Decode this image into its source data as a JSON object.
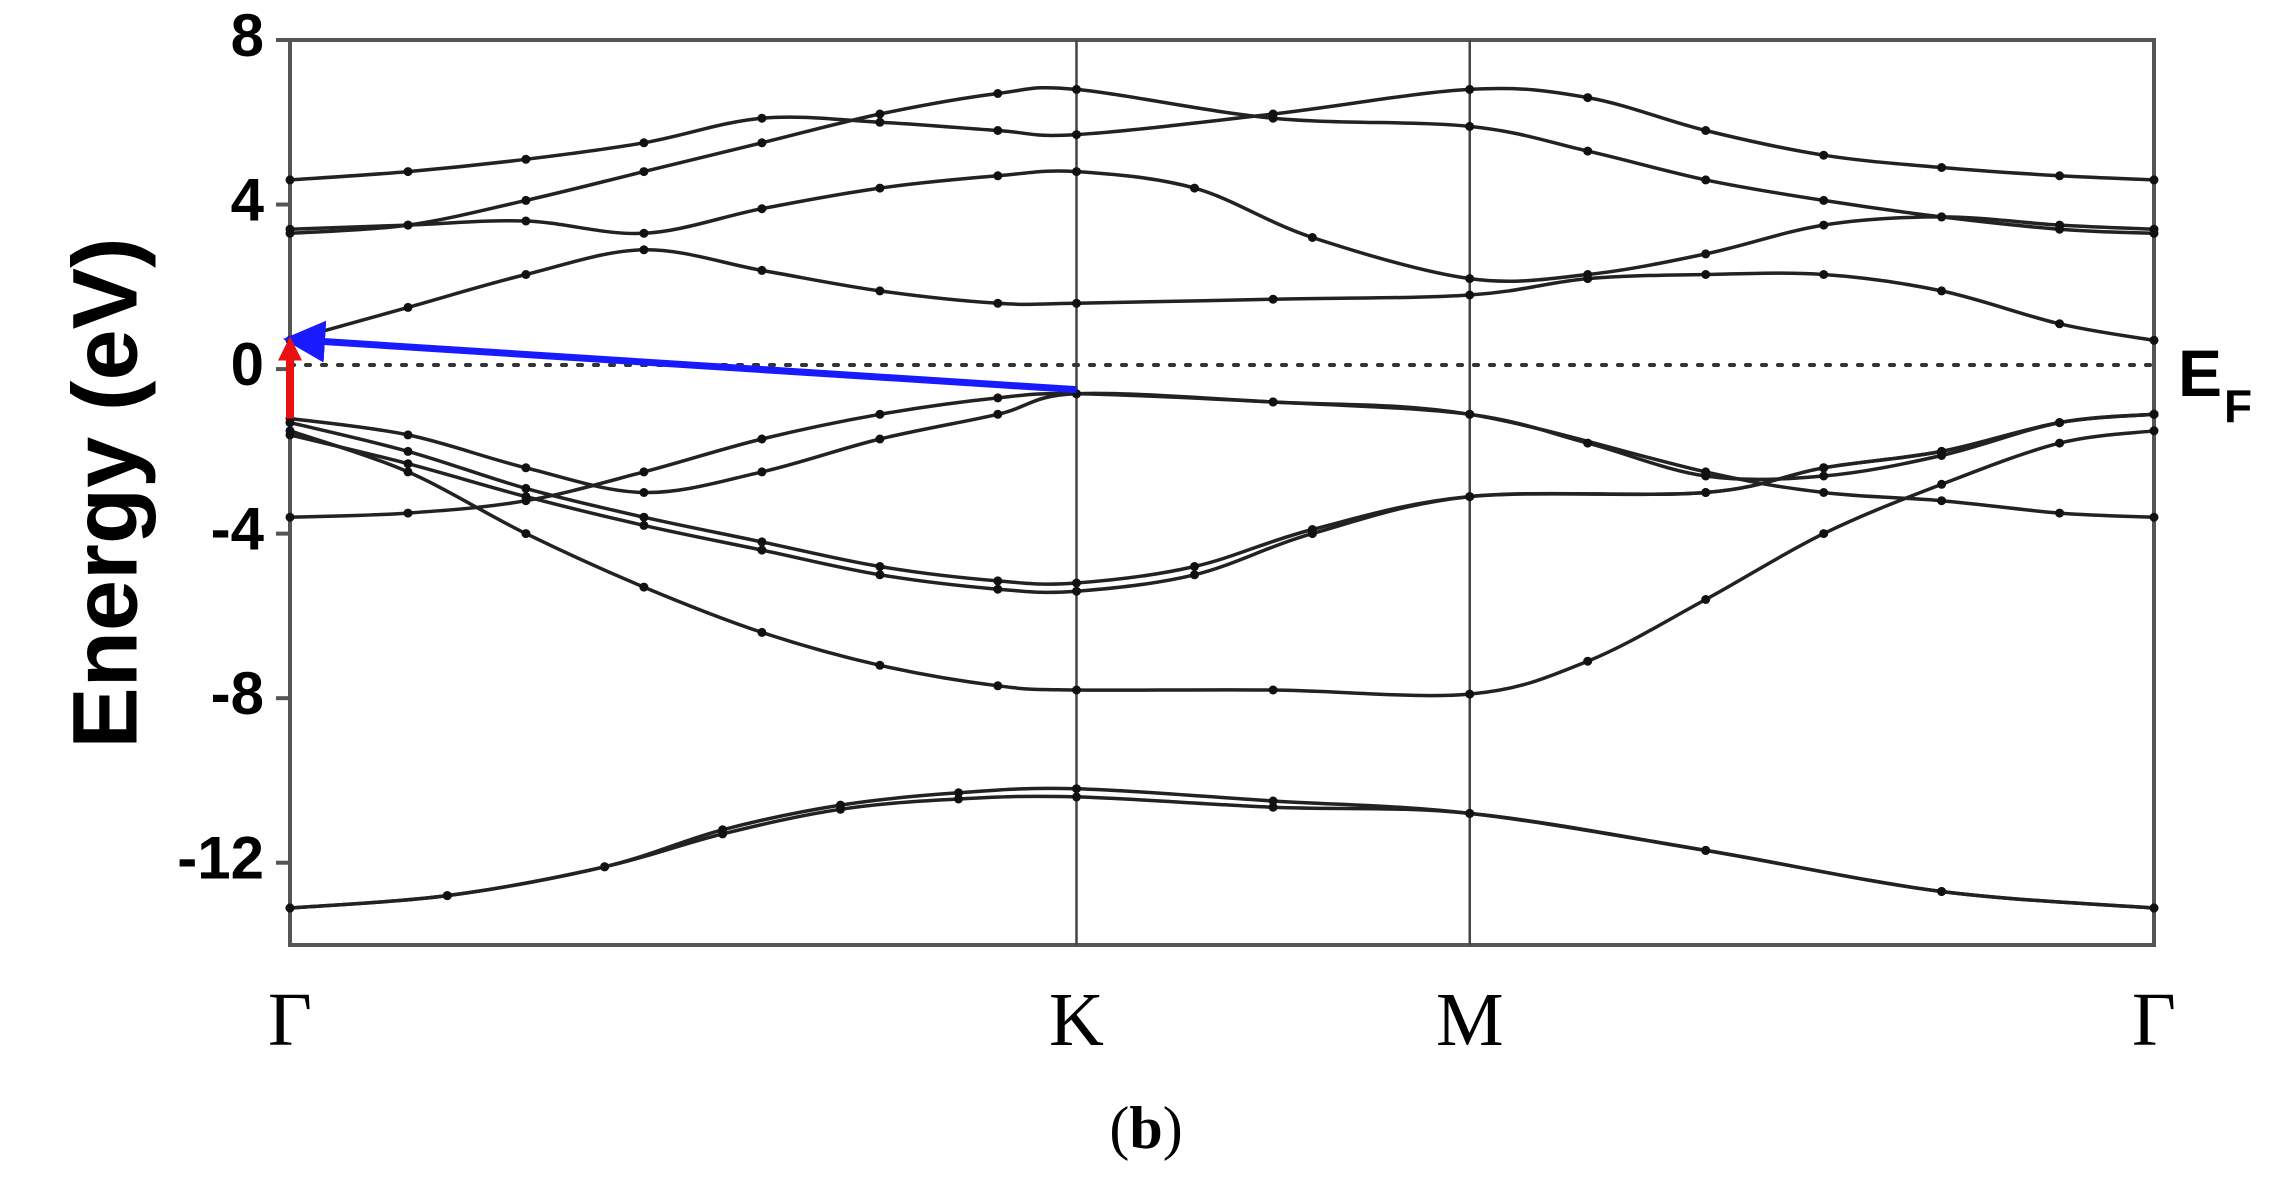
{
  "chart_data": {
    "type": "line",
    "title": "",
    "caption": {
      "open": "(",
      "letter": "b",
      "close": ")"
    },
    "ylabel": "Energy (eV)",
    "xlabel": "",
    "ylim": [
      -14,
      8
    ],
    "yticks": [
      8,
      4,
      0,
      -4,
      -8,
      -12
    ],
    "ytick_labels": [
      "8",
      "4",
      "0",
      "-4",
      "-8",
      "-12"
    ],
    "x_range": [
      0,
      2.37
    ],
    "kpoints": [
      {
        "label": "Γ",
        "x": 0.0
      },
      {
        "label": "K",
        "x": 1.0
      },
      {
        "label": "M",
        "x": 1.5
      },
      {
        "label": "Γ",
        "x": 2.37
      }
    ],
    "fermi_level": {
      "value": 0.1,
      "label_main": "E",
      "label_sub": "F",
      "style": "dotted"
    },
    "series": [
      {
        "x": [
          0.0,
          0.2,
          0.4,
          0.55,
          0.7,
          0.85,
          1.0,
          1.25,
          1.5,
          1.8,
          2.1,
          2.37
        ],
        "values": [
          -13.1,
          -12.8,
          -12.1,
          -11.3,
          -10.7,
          -10.45,
          -10.4,
          -10.65,
          -10.8,
          -11.7,
          -12.7,
          -13.1
        ]
      },
      {
        "x": [
          0.0,
          0.2,
          0.4,
          0.55,
          0.7,
          0.85,
          1.0,
          1.25,
          1.5,
          1.8,
          2.1,
          2.37
        ],
        "values": [
          -13.1,
          -12.8,
          -12.1,
          -11.2,
          -10.6,
          -10.3,
          -10.2,
          -10.5,
          -10.8,
          -11.7,
          -12.7,
          -13.1
        ]
      },
      {
        "x": [
          0.0,
          0.15,
          0.3,
          0.45,
          0.6,
          0.75,
          0.9,
          1.0,
          1.25,
          1.5,
          1.65,
          1.8,
          1.95,
          2.1,
          2.25,
          2.37
        ],
        "values": [
          -1.5,
          -2.5,
          -4.0,
          -5.3,
          -6.4,
          -7.2,
          -7.7,
          -7.8,
          -7.8,
          -7.9,
          -7.1,
          -5.6,
          -4.0,
          -2.8,
          -1.8,
          -1.5
        ]
      },
      {
        "x": [
          0.0,
          0.15,
          0.3,
          0.45,
          0.6,
          0.75,
          0.9,
          1.0,
          1.15,
          1.3,
          1.5,
          1.8,
          1.95,
          2.1,
          2.25,
          2.37
        ],
        "values": [
          -1.6,
          -2.3,
          -3.1,
          -3.8,
          -4.4,
          -5.0,
          -5.35,
          -5.4,
          -5.0,
          -4.0,
          -3.1,
          -3.0,
          -2.4,
          -2.0,
          -1.3,
          -1.1
        ]
      },
      {
        "x": [
          0.0,
          0.15,
          0.3,
          0.45,
          0.6,
          0.75,
          0.9,
          1.0,
          1.15,
          1.3,
          1.5,
          1.8,
          1.95,
          2.1,
          2.25,
          2.37
        ],
        "values": [
          -1.3,
          -2.0,
          -2.9,
          -3.6,
          -4.2,
          -4.8,
          -5.15,
          -5.2,
          -4.8,
          -3.9,
          -3.1,
          -3.0,
          -2.4,
          -2.0,
          -1.3,
          -1.1
        ]
      },
      {
        "x": [
          0.0,
          0.15,
          0.3,
          0.45,
          0.6,
          0.75,
          0.9,
          1.0,
          1.25,
          1.5,
          1.8,
          1.95,
          2.1,
          2.25,
          2.37
        ],
        "values": [
          -3.6,
          -3.5,
          -3.2,
          -2.5,
          -1.7,
          -1.1,
          -0.7,
          -0.6,
          -0.8,
          -1.1,
          -2.5,
          -3.0,
          -3.2,
          -3.5,
          -3.6
        ]
      },
      {
        "x": [
          0.0,
          0.15,
          0.3,
          0.45,
          0.6,
          0.75,
          0.9,
          1.0,
          1.25,
          1.5,
          1.65,
          1.8,
          1.95,
          2.1,
          2.25,
          2.37
        ],
        "values": [
          -1.2,
          -1.6,
          -2.4,
          -3.0,
          -2.5,
          -1.7,
          -1.1,
          -0.6,
          -0.8,
          -1.1,
          -1.8,
          -2.6,
          -2.6,
          -2.1,
          -1.3,
          -1.1
        ]
      },
      {
        "x": [
          0.0,
          0.15,
          0.3,
          0.45,
          0.6,
          0.75,
          0.9,
          1.0,
          1.25,
          1.5,
          1.65,
          1.8,
          1.95,
          2.1,
          2.25,
          2.37
        ],
        "values": [
          0.7,
          1.5,
          2.3,
          2.9,
          2.4,
          1.9,
          1.6,
          1.6,
          1.7,
          1.8,
          2.2,
          2.3,
          2.3,
          1.9,
          1.1,
          0.7
        ]
      },
      {
        "x": [
          0.0,
          0.15,
          0.3,
          0.45,
          0.6,
          0.75,
          0.9,
          1.0,
          1.15,
          1.3,
          1.5,
          1.65,
          1.8,
          1.95,
          2.1,
          2.25,
          2.37
        ],
        "values": [
          3.4,
          3.5,
          3.6,
          3.3,
          3.9,
          4.4,
          4.7,
          4.8,
          4.4,
          3.2,
          2.2,
          2.3,
          2.8,
          3.5,
          3.7,
          3.5,
          3.4
        ]
      },
      {
        "x": [
          0.0,
          0.15,
          0.3,
          0.45,
          0.6,
          0.75,
          0.9,
          1.0,
          1.25,
          1.5,
          1.65,
          1.8,
          1.95,
          2.1,
          2.25,
          2.37
        ],
        "values": [
          3.3,
          3.5,
          4.1,
          4.8,
          5.5,
          6.2,
          6.7,
          6.8,
          6.1,
          5.9,
          5.3,
          4.6,
          4.1,
          3.7,
          3.4,
          3.3
        ]
      },
      {
        "x": [
          0.0,
          0.15,
          0.3,
          0.45,
          0.6,
          0.75,
          0.9,
          1.0,
          1.25,
          1.5,
          1.65,
          1.8,
          1.95,
          2.1,
          2.25,
          2.37
        ],
        "values": [
          4.6,
          4.8,
          5.1,
          5.5,
          6.1,
          6.0,
          5.8,
          5.7,
          6.2,
          6.8,
          6.6,
          5.8,
          5.2,
          4.9,
          4.7,
          4.6
        ]
      }
    ],
    "arrows": [
      {
        "color": "#1a1aff",
        "from": [
          1.0,
          -0.5
        ],
        "to": [
          0.0,
          0.7
        ]
      },
      {
        "color": "#e81010",
        "from": [
          0.0,
          -1.2
        ],
        "to": [
          0.0,
          0.5
        ]
      }
    ],
    "grid": false,
    "legend": "none",
    "line_color": "#222222"
  }
}
